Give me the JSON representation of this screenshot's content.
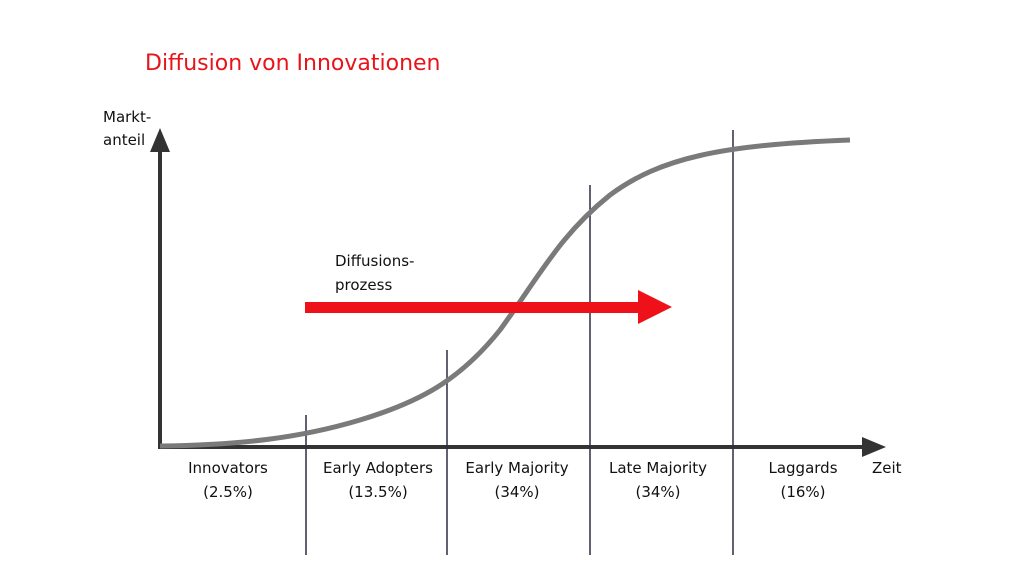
{
  "title": "Diffusion von Innovationen",
  "y_axis_label": [
    "Markt-",
    "anteil"
  ],
  "x_axis_label": "Zeit",
  "arrow_label": [
    "Diffusions-",
    "prozess"
  ],
  "segments": [
    {
      "name": "Innovators",
      "share": "(2.5%)"
    },
    {
      "name": "Early Adopters",
      "share": "(13.5%)"
    },
    {
      "name": "Early Majority",
      "share": "(34%)"
    },
    {
      "name": "Late Majority",
      "share": "(34%)"
    },
    {
      "name": "Laggards",
      "share": "(16%)"
    }
  ]
}
